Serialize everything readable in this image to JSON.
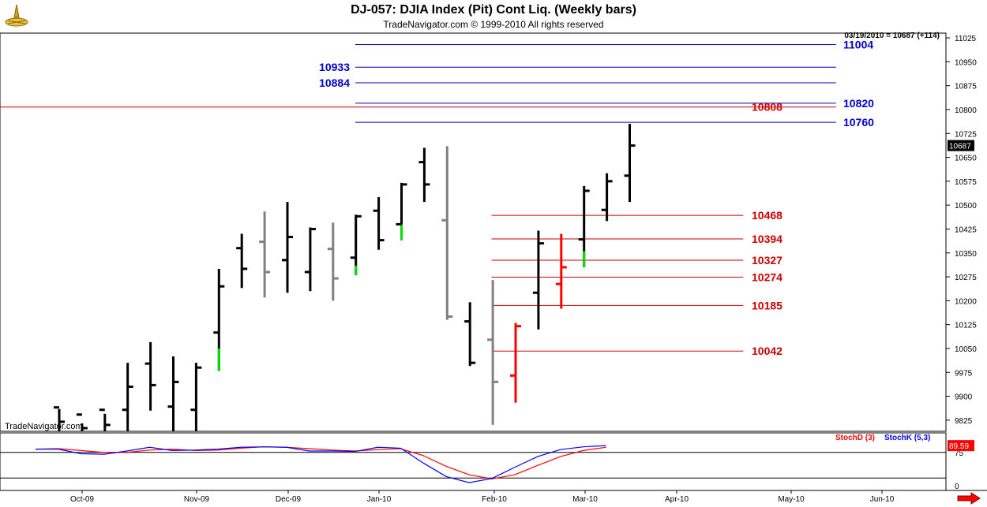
{
  "header": {
    "title": "DJ-057:  DJIA Index (Pit) Cont Liq.  (Weekly bars)",
    "copyright": "TradeNavigator.com © 1999-2010 All rights reserved",
    "watermark": "TradeNavigator.com",
    "last_readout": "03/19/2010 = 10687 (+114)"
  },
  "colors": {
    "price_up": "#000000",
    "price_down": "#808080",
    "price_highlight_green": "#00e000",
    "price_highlight_red": "#ff0000",
    "level_blue": "#0000cc",
    "level_red": "#cc0000",
    "stoch_d": "#ff0000",
    "stoch_k": "#0000ff"
  },
  "chart_data": {
    "type": "line",
    "price": {
      "y_ticks": [
        11025,
        10950,
        10875,
        10800,
        10725,
        10650,
        10575,
        10500,
        10425,
        10350,
        10275,
        10200,
        10125,
        10050,
        9975,
        9900,
        9825
      ],
      "last_price_label": "10687",
      "bars": [
        {
          "h": 9860,
          "l": 9790,
          "c": 9820,
          "color": "#000000"
        },
        {
          "h": 9815,
          "l": 9790,
          "c": 9800,
          "color": "#000000"
        },
        {
          "h": 9845,
          "l": 9790,
          "c": 9810,
          "color": "#000000"
        },
        {
          "h": 10005,
          "l": 9790,
          "c": 9930,
          "color": "#000000"
        },
        {
          "h": 10070,
          "l": 9855,
          "c": 9935,
          "color": "#000000"
        },
        {
          "h": 10025,
          "l": 9790,
          "c": 9945,
          "color": "#000000"
        },
        {
          "h": 10005,
          "l": 9790,
          "c": 9990,
          "color": "#000000"
        },
        {
          "h": 10300,
          "l": 9980,
          "c": 10245,
          "color": "#000000",
          "hl": "#00e000",
          "hl_to": 10050
        },
        {
          "h": 10410,
          "l": 10240,
          "c": 10300,
          "color": "#000000"
        },
        {
          "h": 10480,
          "l": 10210,
          "c": 10290,
          "color": "#808080"
        },
        {
          "h": 10510,
          "l": 10225,
          "c": 10400,
          "color": "#000000"
        },
        {
          "h": 10430,
          "l": 10230,
          "c": 10425,
          "color": "#000000"
        },
        {
          "h": 10445,
          "l": 10200,
          "c": 10270,
          "color": "#808080"
        },
        {
          "h": 10470,
          "l": 10280,
          "c": 10465,
          "color": "#000000",
          "hl": "#00e000",
          "hl_to": 10310
        },
        {
          "h": 10525,
          "l": 10360,
          "c": 10390,
          "color": "#000000"
        },
        {
          "h": 10570,
          "l": 10390,
          "c": 10565,
          "color": "#000000",
          "hl": "#00e000",
          "hl_to": 10440
        },
        {
          "h": 10680,
          "l": 10510,
          "c": 10565,
          "color": "#000000"
        },
        {
          "h": 10685,
          "l": 10140,
          "c": 10150,
          "color": "#808080"
        },
        {
          "h": 10195,
          "l": 9995,
          "c": 10005,
          "color": "#000000"
        },
        {
          "h": 10265,
          "l": 9810,
          "c": 9945,
          "color": "#808080"
        },
        {
          "h": 10130,
          "l": 9880,
          "c": 10120,
          "color": "#ff0000"
        },
        {
          "h": 10420,
          "l": 10110,
          "c": 10380,
          "color": "#000000"
        },
        {
          "h": 10410,
          "l": 10175,
          "c": 10305,
          "color": "#ff0000"
        },
        {
          "h": 10560,
          "l": 10305,
          "c": 10545,
          "color": "#000000",
          "hl": "#00e000",
          "hl_to": 10355
        },
        {
          "h": 10600,
          "l": 10450,
          "c": 10575,
          "color": "#000000"
        },
        {
          "h": 10755,
          "l": 10510,
          "c": 10687,
          "color": "#000000"
        }
      ],
      "levels": [
        {
          "value": 11004,
          "label": "11004",
          "color": "#0000cc",
          "side": "right",
          "x_start": 0.36,
          "x_end": 0.847
        },
        {
          "value": 10933,
          "label": "10933",
          "color": "#0000cc",
          "side": "left",
          "x_start": 0.36,
          "x_end": 0.847
        },
        {
          "value": 10884,
          "label": "10884",
          "color": "#0000cc",
          "side": "left",
          "x_start": 0.36,
          "x_end": 0.847
        },
        {
          "value": 10820,
          "label": "10820",
          "color": "#0000cc",
          "side": "right",
          "x_start": 0.36,
          "x_end": 0.847
        },
        {
          "value": 10808,
          "label": "10808",
          "color": "#cc0000",
          "side": "mid",
          "x_start": 0.0,
          "x_end": 0.847
        },
        {
          "value": 10760,
          "label": "10760",
          "color": "#0000cc",
          "side": "right",
          "x_start": 0.36,
          "x_end": 0.847
        },
        {
          "value": 10468,
          "label": "10468",
          "color": "#cc0000",
          "side": "mid",
          "x_start": 0.498,
          "x_end": 0.753
        },
        {
          "value": 10394,
          "label": "10394",
          "color": "#cc0000",
          "side": "mid",
          "x_start": 0.498,
          "x_end": 0.753
        },
        {
          "value": 10327,
          "label": "10327",
          "color": "#cc0000",
          "side": "mid",
          "x_start": 0.498,
          "x_end": 0.753
        },
        {
          "value": 10274,
          "label": "10274",
          "color": "#cc0000",
          "side": "mid",
          "x_start": 0.498,
          "x_end": 0.753
        },
        {
          "value": 10185,
          "label": "10185",
          "color": "#cc0000",
          "side": "mid",
          "x_start": 0.498,
          "x_end": 0.753
        },
        {
          "value": 10042,
          "label": "10042",
          "color": "#cc0000",
          "side": "mid",
          "x_start": 0.498,
          "x_end": 0.753
        }
      ]
    },
    "oscillator": {
      "legend": [
        {
          "name": "StochD (3)",
          "color": "#ff0000"
        },
        {
          "name": "StochK (5,3)",
          "color": "#0000ff"
        }
      ],
      "y_ticks": [
        "75",
        "0"
      ],
      "last_value_label": "89.59",
      "k_values": [
        82,
        82,
        72,
        71,
        78,
        86,
        79,
        80,
        82,
        86,
        87,
        86,
        78,
        78,
        77,
        86,
        84,
        52,
        23,
        10,
        19,
        43,
        66,
        81,
        87,
        89.59
      ],
      "d_values": [
        82,
        83,
        79,
        75,
        75,
        80,
        82,
        79,
        80,
        84,
        87,
        86,
        83,
        80,
        78,
        81,
        83,
        68,
        45,
        27,
        18,
        27,
        47,
        66,
        79,
        86
      ]
    },
    "x_ticks": [
      "Oct-09",
      "Nov-09",
      "Dec-09",
      "Jan-10",
      "Feb-10",
      "Mar-10",
      "Apr-10",
      "May-10",
      "Jun-10"
    ]
  }
}
